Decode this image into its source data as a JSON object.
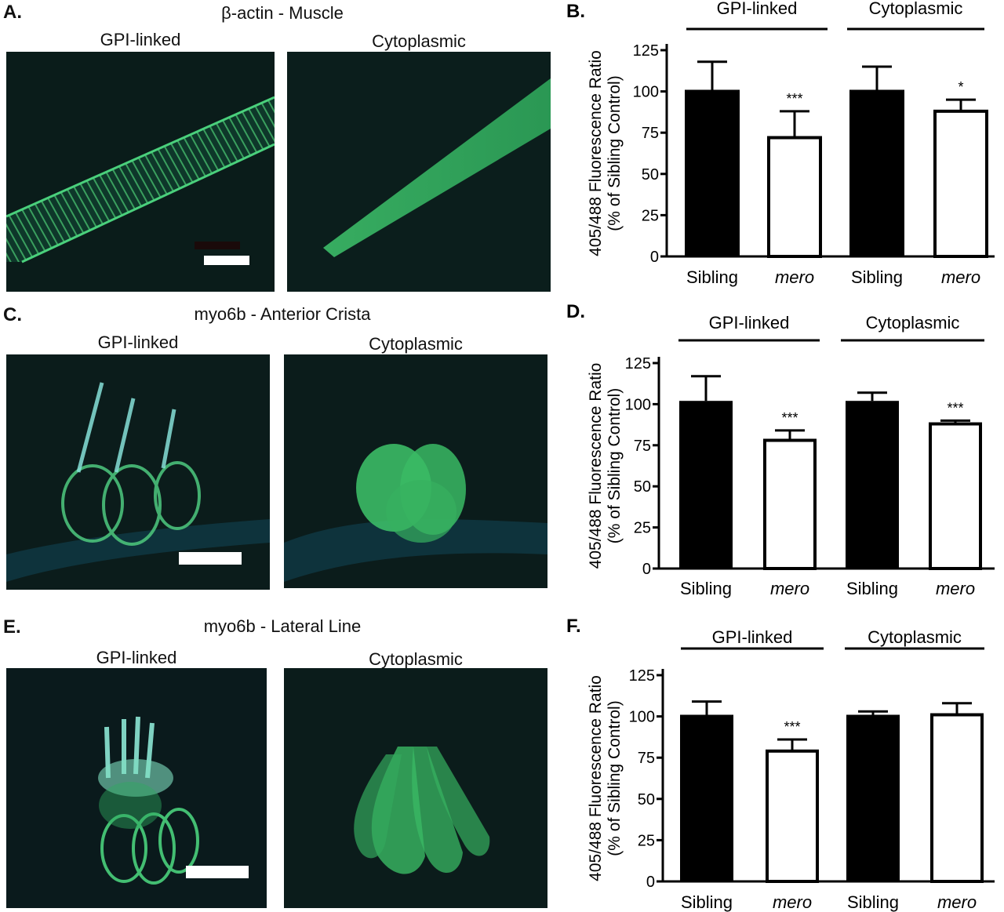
{
  "rows": [
    {
      "letter": "A.",
      "title": "β-actin - Muscle",
      "images": [
        {
          "label": "GPI-linked",
          "kind": "muscle-membrane"
        },
        {
          "label": "Cytoplasmic",
          "kind": "muscle-cyto"
        }
      ]
    },
    {
      "letter": "C.",
      "title": "myo6b - Anterior Crista",
      "images": [
        {
          "label": "GPI-linked",
          "kind": "crista-membrane"
        },
        {
          "label": "Cytoplasmic",
          "kind": "crista-cyto"
        }
      ]
    },
    {
      "letter": "E.",
      "title": "myo6b - Lateral Line",
      "images": [
        {
          "label": "GPI-linked",
          "kind": "lateral-membrane"
        },
        {
          "label": "Cytoplasmic",
          "kind": "lateral-cyto"
        }
      ]
    }
  ],
  "colors": {
    "fluorescence": "#3ec46a",
    "membrane": "#49d07c",
    "background": "#0b1d1b",
    "bar_sibling": "#000000",
    "bar_mero": "#ffffff"
  },
  "chart_data": [
    {
      "letter": "B.",
      "type": "bar",
      "ylabel": "405/488 Fluorescence Ratio",
      "ylabel2": "(% of Sibling Control)",
      "ylim": [
        0,
        125
      ],
      "yticks": [
        "0",
        "25",
        "50",
        "75",
        "100",
        "125"
      ],
      "categories": [
        "Sibling",
        "mero",
        "Sibling",
        "mero"
      ],
      "groups": [
        "GPI-linked",
        "Cytoplasmic"
      ],
      "values": [
        101,
        72,
        101,
        88
      ],
      "errors": [
        17,
        16,
        14,
        7
      ],
      "significance": [
        "",
        "***",
        "",
        "*"
      ],
      "fills": [
        "black",
        "white",
        "black",
        "white"
      ]
    },
    {
      "letter": "D.",
      "type": "bar",
      "ylabel": "405/488 Fluorescence Ratio",
      "ylabel2": "(% of Sibling Control)",
      "ylim": [
        0,
        125
      ],
      "yticks": [
        "0",
        "25",
        "50",
        "75",
        "100",
        "125"
      ],
      "categories": [
        "Sibling",
        "mero",
        "Sibling",
        "mero"
      ],
      "groups": [
        "GPI-linked",
        "Cytoplasmic"
      ],
      "values": [
        102,
        78,
        102,
        88
      ],
      "errors": [
        15,
        6,
        5,
        2
      ],
      "significance": [
        "",
        "***",
        "",
        "***"
      ],
      "fills": [
        "black",
        "white",
        "black",
        "white"
      ]
    },
    {
      "letter": "F.",
      "type": "bar",
      "ylabel": "405/488 Fluorescence Ratio",
      "ylabel2": "(% of Sibling Control)",
      "ylim": [
        0,
        125
      ],
      "yticks": [
        "0",
        "25",
        "50",
        "75",
        "100",
        "125"
      ],
      "categories": [
        "Sibling",
        "mero",
        "Sibling",
        "mero"
      ],
      "groups": [
        "GPI-linked",
        "Cytoplasmic"
      ],
      "values": [
        101,
        79,
        101,
        101
      ],
      "errors": [
        8,
        7,
        2,
        7
      ],
      "significance": [
        "",
        "***",
        "",
        ""
      ],
      "fills": [
        "black",
        "white",
        "black",
        "white"
      ]
    }
  ]
}
